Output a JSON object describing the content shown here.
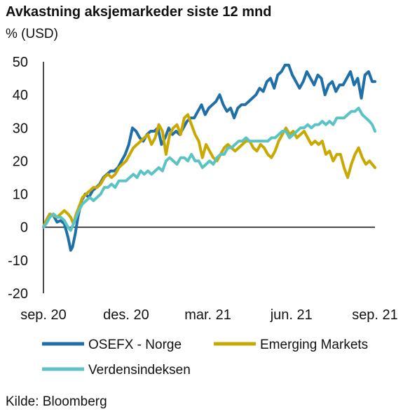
{
  "title": "Avkastning aksjemarkeder siste 12 mnd",
  "ylabel": "% (USD)",
  "source": "Kilde: Bloomberg",
  "chart_data": {
    "type": "line",
    "ylim": [
      -20,
      50
    ],
    "yticks": [
      -20,
      -10,
      0,
      10,
      20,
      30,
      40,
      50
    ],
    "xlim": [
      "2020-09-01",
      "2021-09-01"
    ],
    "xticks": [
      {
        "date": "2020-09-01",
        "label": "sep. 20"
      },
      {
        "date": "2020-12-01",
        "label": "des. 20"
      },
      {
        "date": "2021-03-01",
        "label": "mar. 21"
      },
      {
        "date": "2021-06-01",
        "label": "jun. 21"
      },
      {
        "date": "2021-09-01",
        "label": "sep. 21"
      }
    ],
    "grid": false,
    "legend": "bottom",
    "series": [
      {
        "name": "OSEFX - Norge",
        "color": "#1f6fa8",
        "points": [
          [
            "2020-09-01",
            0
          ],
          [
            "2020-09-04",
            2
          ],
          [
            "2020-09-08",
            4
          ],
          [
            "2020-09-12",
            3.5
          ],
          [
            "2020-09-16",
            1.5
          ],
          [
            "2020-09-20",
            2
          ],
          [
            "2020-09-24",
            1
          ],
          [
            "2020-09-28",
            -3
          ],
          [
            "2020-10-01",
            -7
          ],
          [
            "2020-10-03",
            -6
          ],
          [
            "2020-10-06",
            -2
          ],
          [
            "2020-10-09",
            3
          ],
          [
            "2020-10-13",
            8
          ],
          [
            "2020-10-17",
            10
          ],
          [
            "2020-10-21",
            9
          ],
          [
            "2020-10-25",
            11
          ],
          [
            "2020-10-29",
            12
          ],
          [
            "2020-11-02",
            13
          ],
          [
            "2020-11-06",
            15
          ],
          [
            "2020-11-10",
            16
          ],
          [
            "2020-11-14",
            17
          ],
          [
            "2020-11-18",
            17
          ],
          [
            "2020-11-22",
            18
          ],
          [
            "2020-11-26",
            20
          ],
          [
            "2020-11-30",
            22
          ],
          [
            "2020-12-04",
            25
          ],
          [
            "2020-12-08",
            30
          ],
          [
            "2020-12-12",
            29
          ],
          [
            "2020-12-16",
            27
          ],
          [
            "2020-12-20",
            26
          ],
          [
            "2020-12-24",
            28
          ],
          [
            "2020-12-28",
            29
          ],
          [
            "2021-01-01",
            29
          ],
          [
            "2021-01-05",
            30
          ],
          [
            "2021-01-09",
            25
          ],
          [
            "2021-01-13",
            27
          ],
          [
            "2021-01-17",
            30
          ],
          [
            "2021-01-21",
            28
          ],
          [
            "2021-01-25",
            29
          ],
          [
            "2021-01-29",
            28
          ],
          [
            "2021-02-02",
            30
          ],
          [
            "2021-02-06",
            32
          ],
          [
            "2021-02-10",
            33
          ],
          [
            "2021-02-14",
            33
          ],
          [
            "2021-02-18",
            35
          ],
          [
            "2021-02-22",
            37
          ],
          [
            "2021-02-26",
            34
          ],
          [
            "2021-03-02",
            36
          ],
          [
            "2021-03-06",
            37
          ],
          [
            "2021-03-10",
            38
          ],
          [
            "2021-03-14",
            40
          ],
          [
            "2021-03-18",
            37
          ],
          [
            "2021-03-22",
            35
          ],
          [
            "2021-03-26",
            36
          ],
          [
            "2021-03-30",
            33
          ],
          [
            "2021-04-03",
            36
          ],
          [
            "2021-04-07",
            37
          ],
          [
            "2021-04-11",
            37
          ],
          [
            "2021-04-15",
            38
          ],
          [
            "2021-04-19",
            39
          ],
          [
            "2021-04-23",
            40
          ],
          [
            "2021-04-27",
            42
          ],
          [
            "2021-05-01",
            41
          ],
          [
            "2021-05-05",
            44
          ],
          [
            "2021-05-09",
            45
          ],
          [
            "2021-05-13",
            42
          ],
          [
            "2021-05-17",
            46
          ],
          [
            "2021-05-21",
            47
          ],
          [
            "2021-05-25",
            49
          ],
          [
            "2021-05-29",
            49
          ],
          [
            "2021-06-02",
            46
          ],
          [
            "2021-06-06",
            44
          ],
          [
            "2021-06-10",
            42
          ],
          [
            "2021-06-14",
            44
          ],
          [
            "2021-06-18",
            47
          ],
          [
            "2021-06-22",
            45
          ],
          [
            "2021-06-26",
            43
          ],
          [
            "2021-06-30",
            46
          ],
          [
            "2021-07-04",
            45
          ],
          [
            "2021-07-08",
            40
          ],
          [
            "2021-07-12",
            43
          ],
          [
            "2021-07-16",
            44
          ],
          [
            "2021-07-20",
            41
          ],
          [
            "2021-07-24",
            43
          ],
          [
            "2021-07-28",
            43
          ],
          [
            "2021-08-01",
            45
          ],
          [
            "2021-08-05",
            47
          ],
          [
            "2021-08-09",
            43
          ],
          [
            "2021-08-13",
            45
          ],
          [
            "2021-08-17",
            39
          ],
          [
            "2021-08-21",
            46
          ],
          [
            "2021-08-25",
            47
          ],
          [
            "2021-08-29",
            44
          ],
          [
            "2021-09-01",
            44
          ]
        ]
      },
      {
        "name": "Emerging Markets",
        "color": "#c9a800",
        "points": [
          [
            "2020-09-01",
            0
          ],
          [
            "2020-09-04",
            2
          ],
          [
            "2020-09-08",
            4
          ],
          [
            "2020-09-12",
            3.5
          ],
          [
            "2020-09-16",
            3
          ],
          [
            "2020-09-20",
            4
          ],
          [
            "2020-09-24",
            5
          ],
          [
            "2020-09-28",
            4
          ],
          [
            "2020-10-01",
            3
          ],
          [
            "2020-10-04",
            1
          ],
          [
            "2020-10-07",
            4
          ],
          [
            "2020-10-10",
            6
          ],
          [
            "2020-10-14",
            9
          ],
          [
            "2020-10-18",
            10
          ],
          [
            "2020-10-22",
            11
          ],
          [
            "2020-10-26",
            12
          ],
          [
            "2020-10-30",
            12
          ],
          [
            "2020-11-03",
            13
          ],
          [
            "2020-11-07",
            15
          ],
          [
            "2020-11-11",
            16
          ],
          [
            "2020-11-15",
            15
          ],
          [
            "2020-11-19",
            16
          ],
          [
            "2020-11-23",
            18
          ],
          [
            "2020-11-27",
            19
          ],
          [
            "2020-12-01",
            20
          ],
          [
            "2020-12-05",
            22
          ],
          [
            "2020-12-09",
            24
          ],
          [
            "2020-12-13",
            25
          ],
          [
            "2020-12-17",
            26
          ],
          [
            "2020-12-21",
            27
          ],
          [
            "2020-12-25",
            28
          ],
          [
            "2020-12-29",
            25
          ],
          [
            "2021-01-02",
            27
          ],
          [
            "2021-01-06",
            31
          ],
          [
            "2021-01-10",
            29
          ],
          [
            "2021-01-14",
            22
          ],
          [
            "2021-01-18",
            28
          ],
          [
            "2021-01-22",
            30
          ],
          [
            "2021-01-26",
            31
          ],
          [
            "2021-01-30",
            28
          ],
          [
            "2021-02-03",
            33
          ],
          [
            "2021-02-07",
            34
          ],
          [
            "2021-02-11",
            31
          ],
          [
            "2021-02-15",
            28
          ],
          [
            "2021-02-19",
            26
          ],
          [
            "2021-02-23",
            21
          ],
          [
            "2021-02-27",
            25
          ],
          [
            "2021-03-03",
            23
          ],
          [
            "2021-03-07",
            21
          ],
          [
            "2021-03-11",
            20
          ],
          [
            "2021-03-15",
            22
          ],
          [
            "2021-03-19",
            24
          ],
          [
            "2021-03-23",
            25
          ],
          [
            "2021-03-27",
            24
          ],
          [
            "2021-03-31",
            23
          ],
          [
            "2021-04-04",
            24
          ],
          [
            "2021-04-08",
            25
          ],
          [
            "2021-04-12",
            26
          ],
          [
            "2021-04-16",
            26
          ],
          [
            "2021-04-20",
            24
          ],
          [
            "2021-04-24",
            23
          ],
          [
            "2021-04-28",
            25
          ],
          [
            "2021-05-02",
            24
          ],
          [
            "2021-05-06",
            22
          ],
          [
            "2021-05-10",
            21
          ],
          [
            "2021-05-14",
            23
          ],
          [
            "2021-05-18",
            26
          ],
          [
            "2021-05-22",
            28
          ],
          [
            "2021-05-26",
            30
          ],
          [
            "2021-05-30",
            28
          ],
          [
            "2021-06-03",
            29
          ],
          [
            "2021-06-07",
            27
          ],
          [
            "2021-06-11",
            28
          ],
          [
            "2021-06-15",
            29
          ],
          [
            "2021-06-19",
            27
          ],
          [
            "2021-06-23",
            25
          ],
          [
            "2021-06-27",
            26
          ],
          [
            "2021-07-01",
            25
          ],
          [
            "2021-07-05",
            26
          ],
          [
            "2021-07-09",
            22
          ],
          [
            "2021-07-13",
            23
          ],
          [
            "2021-07-17",
            20
          ],
          [
            "2021-07-21",
            22
          ],
          [
            "2021-07-25",
            22
          ],
          [
            "2021-07-29",
            18
          ],
          [
            "2021-08-02",
            15
          ],
          [
            "2021-08-06",
            19
          ],
          [
            "2021-08-10",
            22
          ],
          [
            "2021-08-14",
            24
          ],
          [
            "2021-08-18",
            21
          ],
          [
            "2021-08-22",
            19
          ],
          [
            "2021-08-26",
            20
          ],
          [
            "2021-08-29",
            19
          ],
          [
            "2021-09-01",
            18
          ]
        ]
      },
      {
        "name": "Verdensindeksen",
        "color": "#5bc3c3",
        "points": [
          [
            "2020-09-01",
            0
          ],
          [
            "2020-09-04",
            1
          ],
          [
            "2020-09-08",
            3
          ],
          [
            "2020-09-12",
            4
          ],
          [
            "2020-09-16",
            3
          ],
          [
            "2020-09-20",
            3
          ],
          [
            "2020-09-24",
            2
          ],
          [
            "2020-09-28",
            0
          ],
          [
            "2020-10-01",
            -1
          ],
          [
            "2020-10-04",
            1
          ],
          [
            "2020-10-07",
            3
          ],
          [
            "2020-10-10",
            5
          ],
          [
            "2020-10-14",
            7
          ],
          [
            "2020-10-18",
            8
          ],
          [
            "2020-10-22",
            9
          ],
          [
            "2020-10-26",
            8
          ],
          [
            "2020-10-30",
            9
          ],
          [
            "2020-11-03",
            10
          ],
          [
            "2020-11-07",
            12
          ],
          [
            "2020-11-11",
            12
          ],
          [
            "2020-11-15",
            13
          ],
          [
            "2020-11-19",
            12
          ],
          [
            "2020-11-23",
            14
          ],
          [
            "2020-11-27",
            14
          ],
          [
            "2020-12-01",
            14
          ],
          [
            "2020-12-05",
            15
          ],
          [
            "2020-12-09",
            16
          ],
          [
            "2020-12-13",
            15
          ],
          [
            "2020-12-17",
            17
          ],
          [
            "2020-12-21",
            16
          ],
          [
            "2020-12-25",
            17
          ],
          [
            "2020-12-29",
            16
          ],
          [
            "2021-01-02",
            17
          ],
          [
            "2021-01-06",
            18
          ],
          [
            "2021-01-10",
            17
          ],
          [
            "2021-01-14",
            20
          ],
          [
            "2021-01-18",
            21
          ],
          [
            "2021-01-22",
            20
          ],
          [
            "2021-01-26",
            19
          ],
          [
            "2021-01-30",
            21
          ],
          [
            "2021-02-03",
            21
          ],
          [
            "2021-02-07",
            20
          ],
          [
            "2021-02-11",
            22
          ],
          [
            "2021-02-15",
            20
          ],
          [
            "2021-02-19",
            20
          ],
          [
            "2021-02-23",
            18
          ],
          [
            "2021-02-27",
            19
          ],
          [
            "2021-03-03",
            20
          ],
          [
            "2021-03-07",
            19
          ],
          [
            "2021-03-11",
            21
          ],
          [
            "2021-03-15",
            22
          ],
          [
            "2021-03-19",
            22
          ],
          [
            "2021-03-23",
            24
          ],
          [
            "2021-03-27",
            24
          ],
          [
            "2021-03-31",
            25
          ],
          [
            "2021-04-04",
            26
          ],
          [
            "2021-04-08",
            26
          ],
          [
            "2021-04-12",
            27
          ],
          [
            "2021-04-16",
            26
          ],
          [
            "2021-04-20",
            26
          ],
          [
            "2021-04-24",
            26
          ],
          [
            "2021-04-28",
            26
          ],
          [
            "2021-05-02",
            26
          ],
          [
            "2021-05-06",
            26
          ],
          [
            "2021-05-10",
            27
          ],
          [
            "2021-05-14",
            27
          ],
          [
            "2021-05-18",
            28
          ],
          [
            "2021-05-22",
            29
          ],
          [
            "2021-05-26",
            29
          ],
          [
            "2021-05-30",
            27
          ],
          [
            "2021-06-03",
            28
          ],
          [
            "2021-06-07",
            29
          ],
          [
            "2021-06-11",
            30
          ],
          [
            "2021-06-15",
            30
          ],
          [
            "2021-06-19",
            31
          ],
          [
            "2021-06-23",
            30
          ],
          [
            "2021-06-27",
            31
          ],
          [
            "2021-07-01",
            31
          ],
          [
            "2021-07-05",
            32
          ],
          [
            "2021-07-09",
            31
          ],
          [
            "2021-07-13",
            32
          ],
          [
            "2021-07-17",
            31
          ],
          [
            "2021-07-21",
            33
          ],
          [
            "2021-07-25",
            33
          ],
          [
            "2021-07-29",
            33
          ],
          [
            "2021-08-02",
            34
          ],
          [
            "2021-08-06",
            35
          ],
          [
            "2021-08-10",
            35
          ],
          [
            "2021-08-14",
            36
          ],
          [
            "2021-08-18",
            34
          ],
          [
            "2021-08-22",
            33
          ],
          [
            "2021-08-26",
            32
          ],
          [
            "2021-08-29",
            31
          ],
          [
            "2021-09-01",
            29
          ]
        ]
      }
    ]
  }
}
